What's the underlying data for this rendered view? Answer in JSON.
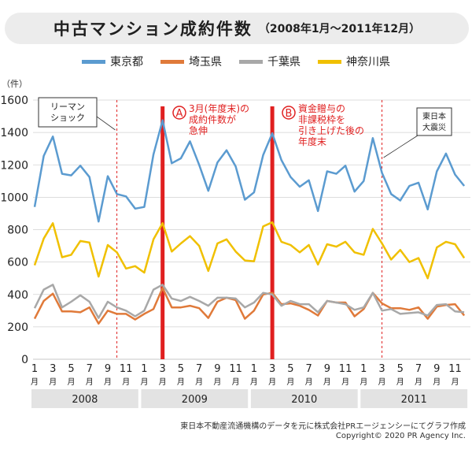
{
  "title": {
    "main": "中古マンション成約件数",
    "sub": "（2008年1月～2011年12月）"
  },
  "colors": {
    "tokyo": "#5b9bd0",
    "saitama": "#e07a3a",
    "chiba": "#a8a8a8",
    "kanagawa": "#f0c000",
    "marker": "#e02020",
    "grid": "#d2d2d2",
    "year_band": "#e3e3e3"
  },
  "chart_data": {
    "type": "line",
    "ylabel": "（件）",
    "ylim": [
      0,
      1600
    ],
    "yticks": [
      0,
      200,
      400,
      600,
      800,
      1000,
      1200,
      1400,
      1600
    ],
    "grid": "horizontal",
    "legend_position": "top-center",
    "x_tick_month_labels": [
      "1",
      "3",
      "5",
      "7",
      "9",
      "11",
      "1",
      "3",
      "5",
      "7",
      "9",
      "11",
      "1",
      "3",
      "5",
      "7",
      "9",
      "11",
      "1",
      "3",
      "5",
      "7",
      "9",
      "11"
    ],
    "x_tick_suffix": "月",
    "years": [
      "2008",
      "2009",
      "2010",
      "2011"
    ],
    "series": [
      {
        "name": "東京都",
        "color_key": "tokyo",
        "values": [
          940,
          1255,
          1375,
          1145,
          1135,
          1195,
          1125,
          850,
          1130,
          1020,
          1005,
          930,
          940,
          1265,
          1475,
          1210,
          1240,
          1345,
          1200,
          1040,
          1215,
          1290,
          1190,
          985,
          1030,
          1260,
          1395,
          1230,
          1125,
          1065,
          1105,
          915,
          1160,
          1145,
          1195,
          1035,
          1100,
          1365,
          1150,
          1020,
          980,
          1070,
          1090,
          925,
          1160,
          1270,
          1140,
          1070
        ]
      },
      {
        "name": "埼玉県",
        "color_key": "saitama",
        "values": [
          250,
          360,
          405,
          295,
          295,
          290,
          320,
          220,
          300,
          280,
          280,
          245,
          280,
          310,
          440,
          320,
          320,
          330,
          315,
          255,
          355,
          380,
          365,
          250,
          300,
          400,
          410,
          340,
          345,
          330,
          305,
          270,
          360,
          350,
          350,
          265,
          310,
          410,
          345,
          315,
          315,
          305,
          320,
          250,
          325,
          335,
          340,
          270
        ]
      },
      {
        "name": "千葉県",
        "color_key": "chiba",
        "values": [
          315,
          430,
          460,
          320,
          355,
          395,
          355,
          255,
          355,
          320,
          300,
          265,
          300,
          430,
          460,
          375,
          360,
          385,
          360,
          330,
          380,
          380,
          375,
          320,
          350,
          410,
          400,
          330,
          360,
          340,
          340,
          290,
          360,
          350,
          340,
          305,
          320,
          410,
          300,
          310,
          280,
          285,
          290,
          270,
          335,
          340,
          295,
          290
        ]
      },
      {
        "name": "神奈川県",
        "color_key": "kanagawa",
        "values": [
          580,
          745,
          840,
          630,
          645,
          730,
          720,
          510,
          705,
          660,
          560,
          575,
          535,
          740,
          840,
          665,
          715,
          760,
          700,
          545,
          715,
          740,
          665,
          610,
          605,
          820,
          845,
          725,
          705,
          660,
          705,
          585,
          710,
          695,
          725,
          660,
          645,
          805,
          715,
          615,
          675,
          600,
          625,
          500,
          690,
          725,
          710,
          625
        ]
      }
    ],
    "events": [
      {
        "type": "dashed",
        "month_index": 9,
        "label": [
          "リーマン",
          "ショック"
        ]
      },
      {
        "type": "dashed",
        "month_index": 38,
        "label": [
          "東日本",
          "大震災"
        ]
      },
      {
        "type": "solid",
        "month_index": 14,
        "badge": "A",
        "label": [
          "3月(年度末)の",
          "成約件数が",
          "急伸"
        ]
      },
      {
        "type": "solid",
        "month_index": 26,
        "badge": "B",
        "label": [
          "資金贈与の",
          "非課税枠を",
          "引き上げた後の",
          "年度末"
        ]
      }
    ]
  },
  "footer": {
    "source": "東日本不動産流通機構のデータを元に株式会社PRエージェンシーにてグラフ作成",
    "copyright": "Copyright© 2020 PR Agency Inc."
  }
}
